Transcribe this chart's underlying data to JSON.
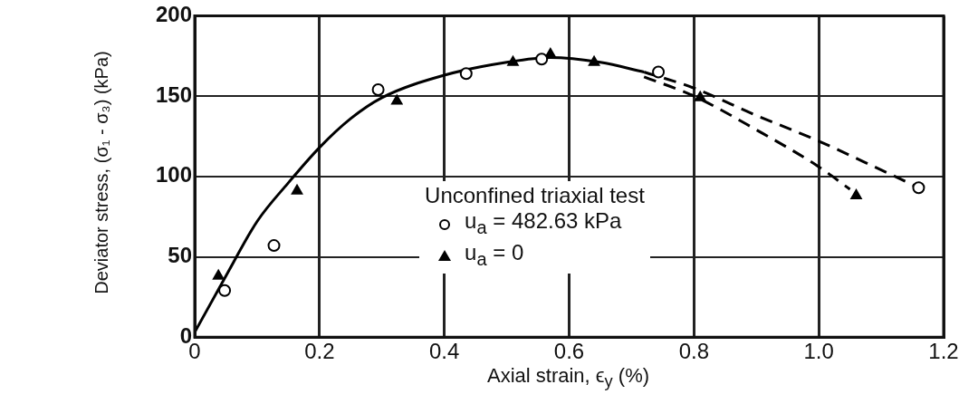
{
  "chart_data": {
    "type": "scatter",
    "xlabel": "Axial strain, ϵ$_{y}$ (%)",
    "ylabel": "Deviator stress, (σ₁ - σ₃) (kPa)",
    "legend_title": "Unconfined triaxial test",
    "xlim": [
      0,
      1.2
    ],
    "xticks": [
      0,
      0.2,
      0.4,
      0.6,
      0.8,
      {
        "value": 1,
        "label": "1.0"
      },
      1.2
    ],
    "ylim": [
      0,
      200
    ],
    "yticks": [
      0,
      50,
      100,
      150,
      200
    ],
    "grid": true,
    "legend": "bottom",
    "series": [
      {
        "type": "line",
        "color": "#000000",
        "line_style": "solid",
        "marker": "none",
        "x": [
          0,
          0.05,
          0.1,
          0.15,
          0.2,
          0.25,
          0.3,
          0.4,
          0.5,
          0.57,
          0.65,
          0.72
        ],
        "values": [
          3,
          38,
          72,
          96,
          118,
          136,
          149,
          163,
          171,
          174,
          171,
          165
        ]
      },
      {
        "type": "line",
        "color": "#000000",
        "line_style": "dashed",
        "marker": "none",
        "x": [
          0.72,
          0.8,
          0.9,
          1,
          1.1,
          1.16
        ],
        "values": [
          165,
          155,
          138,
          122,
          104,
          93
        ]
      },
      {
        "type": "line",
        "color": "#000000",
        "line_style": "dashed",
        "marker": "none",
        "x": [
          0.72,
          0.8,
          0.9,
          1,
          1.05
        ],
        "values": [
          162,
          150,
          129,
          106,
          92
        ]
      },
      {
        "name": "u$_{a}$ = 482.63 kPa",
        "color": "#000000",
        "marker": "circle",
        "x": [
          0.048,
          0.127,
          0.294,
          0.435,
          0.556,
          0.743,
          1.16
        ],
        "values": [
          29,
          57,
          154,
          164,
          173,
          165,
          93
        ]
      },
      {
        "name": "u$_{a}$ = 0",
        "color": "#000000",
        "marker": "triangle",
        "x": [
          0.038,
          0.164,
          0.324,
          0.51,
          0.57,
          0.64,
          0.81,
          1.06
        ],
        "values": [
          38,
          91,
          147,
          171,
          176,
          171,
          149,
          88
        ]
      }
    ]
  }
}
